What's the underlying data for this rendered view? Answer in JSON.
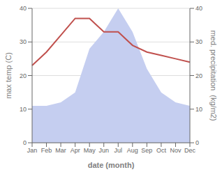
{
  "chart_data": {
    "type": "line",
    "categories": [
      "Jan",
      "Feb",
      "Mar",
      "Apr",
      "May",
      "Jun",
      "Jul",
      "Aug",
      "Sep",
      "Oct",
      "Nov",
      "Dec"
    ],
    "series": [
      {
        "type": "area",
        "axis": "y2",
        "color": "#c5cef0",
        "values": [
          11,
          11,
          12,
          15,
          28,
          33,
          40,
          33,
          22,
          15,
          12,
          11
        ]
      },
      {
        "type": "line",
        "color": "#c0504d",
        "values": [
          23,
          27,
          32,
          37,
          37,
          33,
          33,
          29,
          27,
          26,
          25,
          24
        ]
      }
    ],
    "xlabel": "date (month)",
    "ylabel": "max temp (C)",
    "y2label": "med. precipitation  (kg/m2)",
    "ylim": [
      0,
      40
    ],
    "yticks": [
      0,
      10,
      20,
      30,
      40
    ],
    "y2lim": [
      0,
      40
    ],
    "y2ticks": [
      0,
      10,
      20,
      30,
      40
    ],
    "grid": true
  }
}
